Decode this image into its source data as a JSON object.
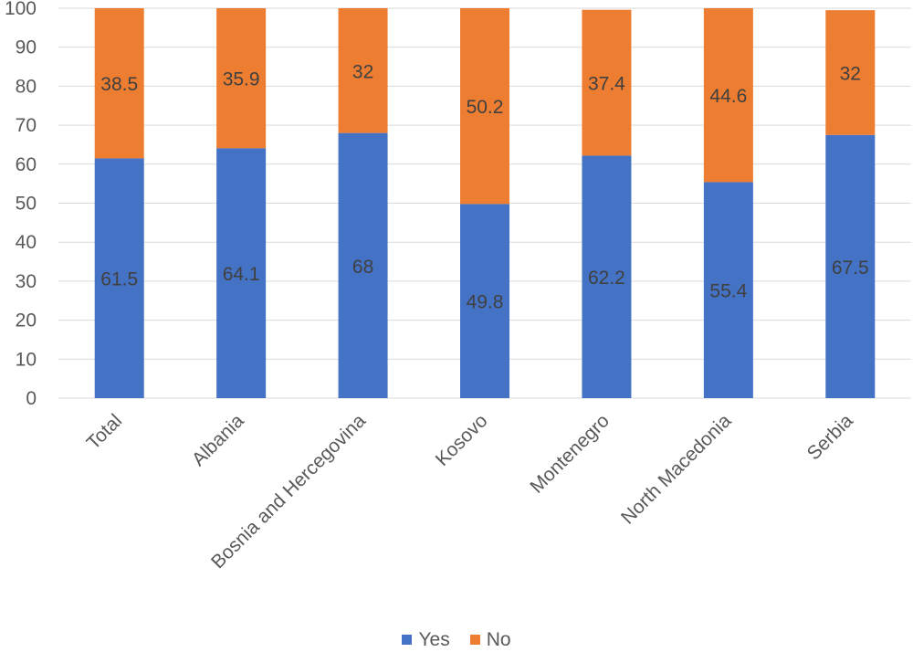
{
  "chart_data": {
    "type": "bar",
    "stacked": true,
    "categories": [
      "Total",
      "Albania",
      "Bosnia and Hercegovina",
      "Kosovo",
      "Montenegro",
      "North Macedonia",
      "Serbia"
    ],
    "series": [
      {
        "name": "Yes",
        "color": "#4472C4",
        "values": [
          61.5,
          64.1,
          68,
          49.8,
          62.2,
          55.4,
          67.5
        ],
        "labels": [
          "61.5",
          "64.1",
          "68",
          "49.8",
          "62.2",
          "55.4",
          "67.5"
        ]
      },
      {
        "name": "No",
        "color": "#ED7D31",
        "values": [
          38.5,
          35.9,
          32,
          50.2,
          37.4,
          44.6,
          32
        ],
        "labels": [
          "38.5",
          "35.9",
          "32",
          "50.2",
          "37.4",
          "44.6",
          "32"
        ]
      }
    ],
    "title": "",
    "xlabel": "",
    "ylabel": "",
    "ylim": [
      0,
      100
    ],
    "yticks": [
      "0",
      "10",
      "20",
      "30",
      "40",
      "50",
      "60",
      "70",
      "80",
      "90",
      "100"
    ],
    "grid": true,
    "legend_position": "bottom"
  }
}
